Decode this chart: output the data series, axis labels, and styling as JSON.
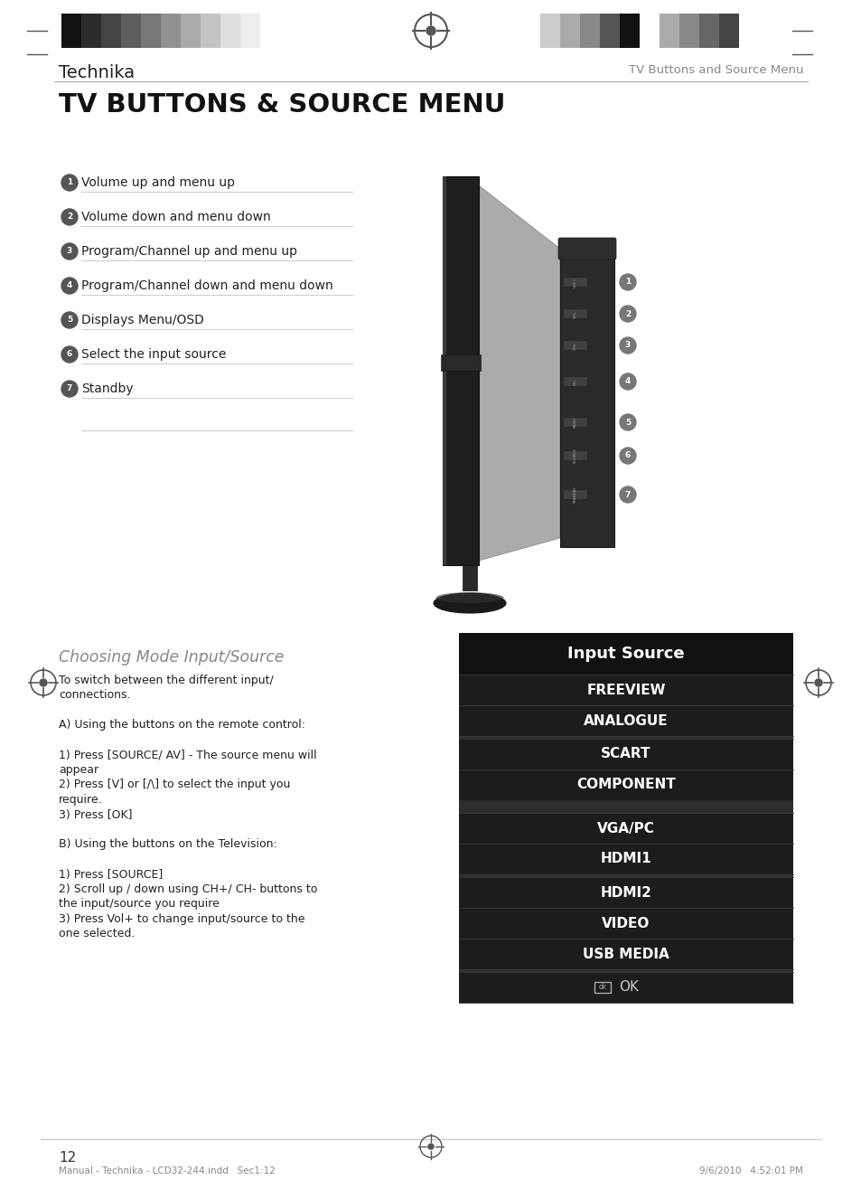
{
  "bg_color": "#ffffff",
  "page_title": "TV BUTTONS & SOURCE MENU",
  "header_brand": "Technika",
  "header_right": "TV Buttons and Source Menu",
  "numbered_items": [
    "Volume up and menu up",
    "Volume down and menu down",
    "Program/Channel up and menu up",
    "Program/Channel down and menu down",
    "Displays Menu/OSD",
    "Select the input source",
    "Standby"
  ],
  "section_title": "Choosing Mode Input/Source",
  "menu_title": "Input Source",
  "menu_rows": [
    {
      "text": "FREEVIEW",
      "type": "item"
    },
    {
      "text": "ANALOGUE",
      "type": "item"
    },
    {
      "text": null,
      "type": "sep"
    },
    {
      "text": "SCART",
      "type": "item"
    },
    {
      "text": "COMPONENT",
      "type": "item"
    },
    {
      "text": null,
      "type": "gap"
    },
    {
      "text": "VGA/PC",
      "type": "item"
    },
    {
      "text": "HDMI1",
      "type": "item"
    },
    {
      "text": null,
      "type": "sep"
    },
    {
      "text": "HDMI2",
      "type": "item"
    },
    {
      "text": "VIDEO",
      "type": "item"
    },
    {
      "text": "USB MEDIA",
      "type": "item"
    },
    {
      "text": null,
      "type": "sep"
    },
    {
      "text": "ok",
      "type": "ok"
    }
  ],
  "menu_bg_dark": "#1c1c1c",
  "menu_bg_mid": "#252525",
  "menu_sep_color": "#3a3a3a",
  "menu_gap_color": "#2e2e2e",
  "menu_text_color": "#ffffff",
  "menu_title_bg": "#111111",
  "footer_text": "12",
  "footer_manual": "Manual - Technika - LCD32-244.indd   Sec1:12",
  "footer_date": "9/6/2010   4:52:01 PM",
  "bar_colors_left": [
    "#111111",
    "#2b2b2b",
    "#444444",
    "#5e5e5e",
    "#777777",
    "#919191",
    "#aaaaaa",
    "#c4c4c4",
    "#dddddd",
    "#eeeeee"
  ],
  "bar_colors_right": [
    "#cccccc",
    "#aaaaaa",
    "#888888",
    "#555555",
    "#111111",
    "#ffffff",
    "#aaaaaa",
    "#888888",
    "#666666",
    "#444444"
  ],
  "reg_color": "#555555"
}
